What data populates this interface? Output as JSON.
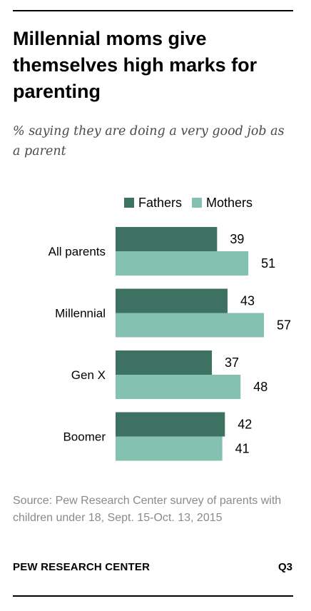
{
  "title": "Millennial moms give themselves high marks for parenting",
  "subtitle": "% saying they are doing a very good job as a parent",
  "colors": {
    "fathers": "#3d7263",
    "mothers": "#85c1b1"
  },
  "chart_data": {
    "type": "bar",
    "orientation": "horizontal",
    "categories": [
      "All parents",
      "Millennial",
      "Gen X",
      "Boomer"
    ],
    "series": [
      {
        "name": "Fathers",
        "values": [
          39,
          43,
          37,
          42
        ]
      },
      {
        "name": "Mothers",
        "values": [
          51,
          57,
          48,
          41
        ]
      }
    ],
    "legend": "top",
    "grid": false,
    "xlim": [
      0,
      100
    ]
  },
  "source": "Source: Pew Research Center survey of parents with children under 18, Sept. 15-Oct. 13, 2015",
  "footer": {
    "org": "PEW RESEARCH CENTER",
    "code": "Q3"
  }
}
